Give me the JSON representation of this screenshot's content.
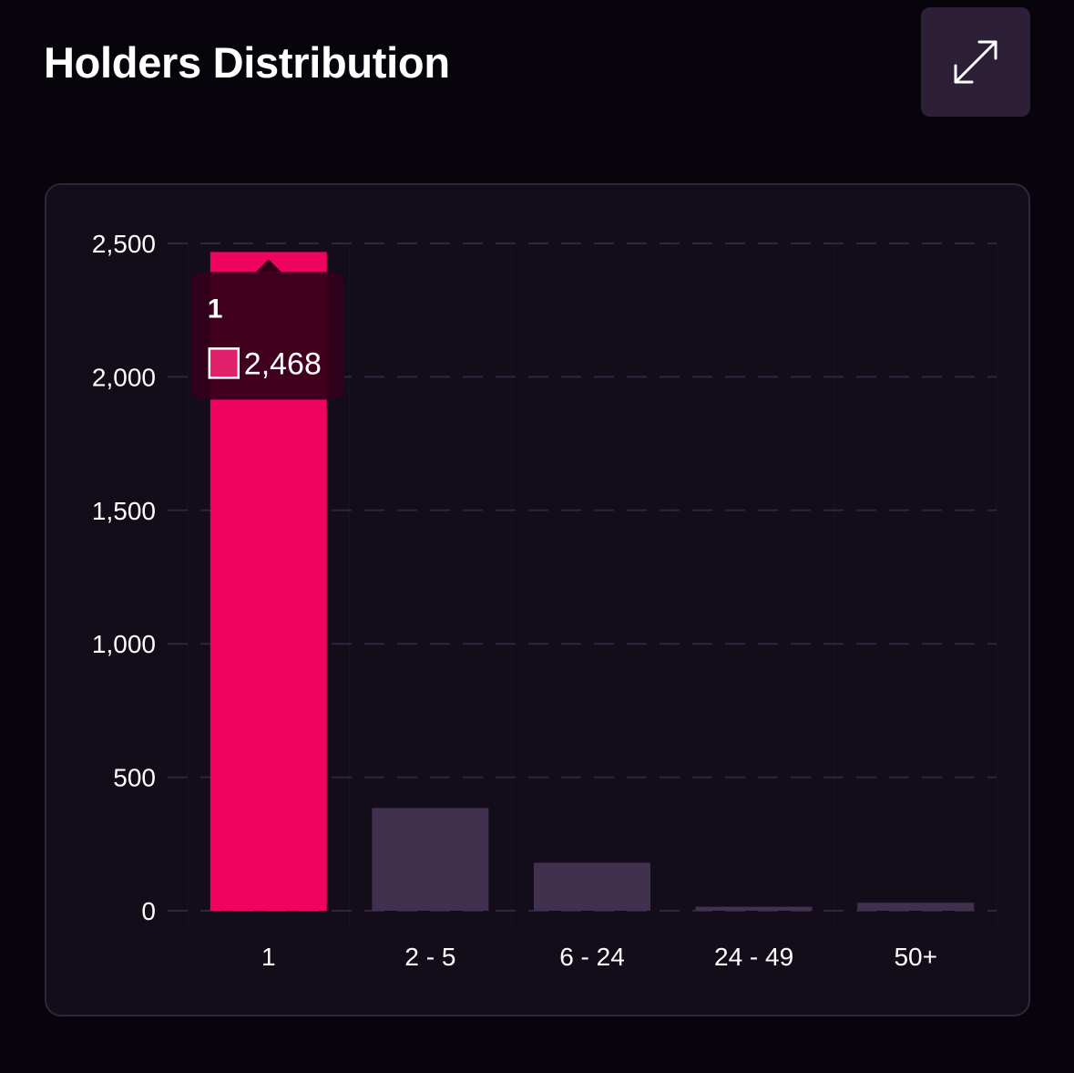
{
  "header": {
    "title": "Holders Distribution",
    "expand_icon": "expand-arrows-icon"
  },
  "colors": {
    "page_bg": "#07050b",
    "card_bg": "#120d19",
    "card_border": "#32243e",
    "highlight_bar": "#f0035f",
    "default_bar": "#42304f",
    "grid": "#2e2540",
    "tooltip_bg": "#33001a",
    "tooltip_swatch": "#e0206a"
  },
  "chart_data": {
    "type": "bar",
    "title": "Holders Distribution",
    "xlabel": "",
    "ylabel": "",
    "categories": [
      "1",
      "2 - 5",
      "6 - 24",
      "24 - 49",
      "50+"
    ],
    "values": [
      2468,
      385,
      180,
      15,
      30
    ],
    "ylim": [
      0,
      2500
    ],
    "yticks": [
      0,
      500,
      1000,
      1500,
      2000,
      2500
    ],
    "ytick_labels": [
      "0",
      "500",
      "1,000",
      "1,500",
      "2,000",
      "2,500"
    ],
    "grid": true,
    "highlighted_index": 0,
    "tooltip": {
      "title": "1",
      "value": "2,468"
    }
  }
}
